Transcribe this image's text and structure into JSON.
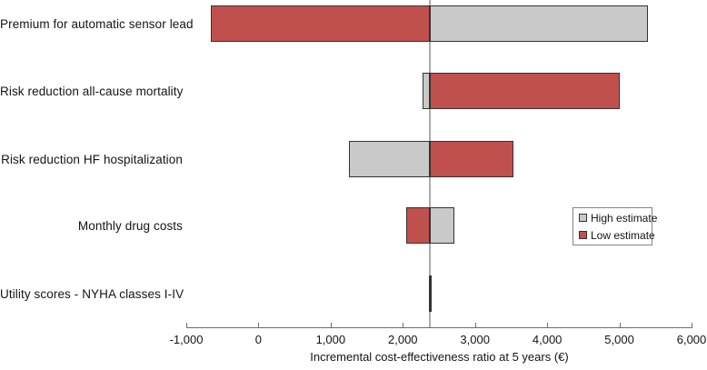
{
  "chart_data": {
    "type": "bar",
    "subtype": "tornado",
    "orientation": "horizontal",
    "title": "",
    "xlabel": "Incremental cost-effectiveness ratio at 5 years (€)",
    "ylabel": "",
    "xlim": [
      -1000,
      6000
    ],
    "x_ticks": [
      {
        "value": -1000,
        "label": "-1,000"
      },
      {
        "value": 0,
        "label": "0"
      },
      {
        "value": 1000,
        "label": "1,000"
      },
      {
        "value": 2000,
        "label": "2,000"
      },
      {
        "value": 3000,
        "label": "3,000"
      },
      {
        "value": 4000,
        "label": "4,000"
      },
      {
        "value": 5000,
        "label": "5,000"
      },
      {
        "value": 6000,
        "label": "6,000"
      }
    ],
    "base_value": 2380,
    "categories": [
      "Premium for automatic sensor lead",
      "Risk reduction all-cause mortality",
      "Risk reduction HF hospitalization",
      "Monthly drug costs",
      "Utility scores - NYHA classes I-IV"
    ],
    "series": [
      {
        "name": "High estimate",
        "color": "#c9c9c9",
        "values": [
          5400,
          2270,
          1250,
          2720,
          2400
        ]
      },
      {
        "name": "Low estimate",
        "color": "#c0504d",
        "values": [
          -660,
          5000,
          3530,
          2050,
          2360
        ]
      }
    ],
    "baseline_color": "#ababab",
    "bar_border_color": "#333333",
    "grid": false,
    "legend": {
      "position": "right-middle",
      "items": [
        "High estimate",
        "Low estimate"
      ]
    }
  }
}
